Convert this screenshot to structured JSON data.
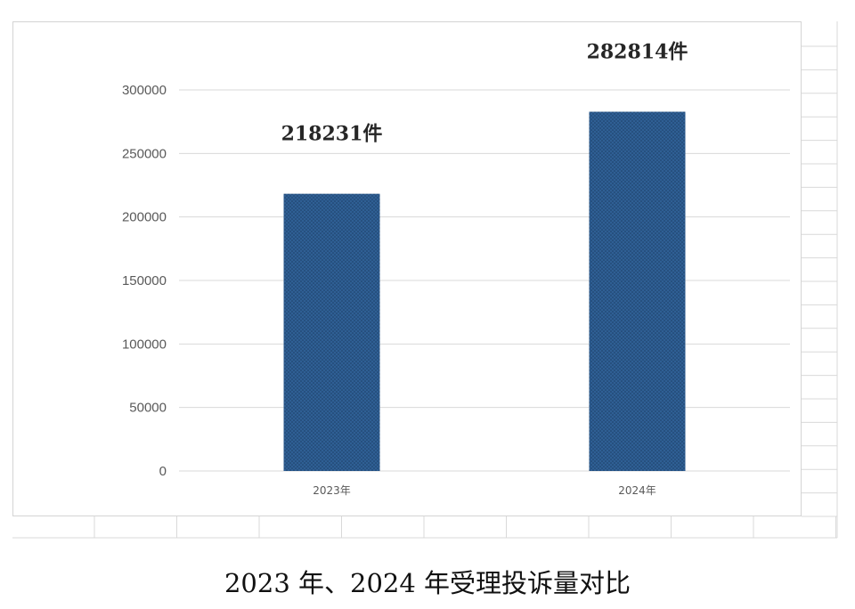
{
  "caption": "2023 年、2024 年受理投诉量对比",
  "colors": {
    "bar": "#2f5f94",
    "bar_dot": "#1b3e66",
    "grid": "#d9d9d9",
    "sheet_grid": "#d9d9d9"
  },
  "chart_data": {
    "type": "bar",
    "categories": [
      "2023年",
      "2024年"
    ],
    "values": [
      218231,
      282814
    ],
    "data_labels": [
      "218231件",
      "282814件"
    ],
    "title": "",
    "xlabel": "",
    "ylabel": "",
    "ylim": [
      0,
      300000
    ],
    "yticks": [
      0,
      50000,
      100000,
      150000,
      200000,
      250000,
      300000
    ],
    "ytick_labels": [
      "0",
      "50000",
      "100000",
      "150000",
      "200000",
      "250000",
      "300000"
    ],
    "grid": true,
    "legend": "none"
  }
}
